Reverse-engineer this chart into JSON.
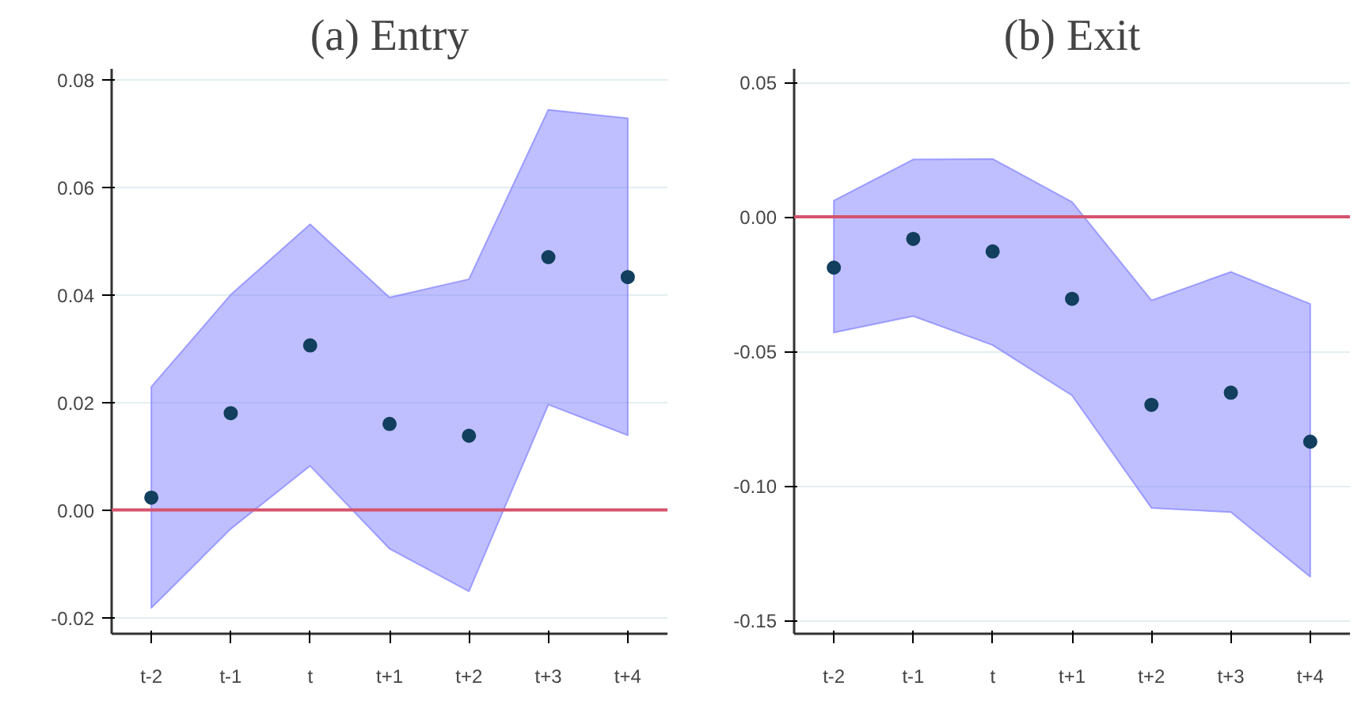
{
  "chart_data": [
    {
      "type": "scatter",
      "title": "(a) Entry",
      "categories": [
        "t-2",
        "t-1",
        "t",
        "t+1",
        "t+2",
        "t+3",
        "t+4"
      ],
      "ylim": [
        -0.023,
        0.082
      ],
      "yticks": [
        {
          "value": -0.02,
          "label": "-0.02"
        },
        {
          "value": 0,
          "label": "0.00"
        },
        {
          "value": 0.02,
          "label": "0.02"
        },
        {
          "value": 0.04,
          "label": "0.04"
        },
        {
          "value": 0.06,
          "label": "0.06"
        },
        {
          "value": 0.08,
          "label": "0.08"
        }
      ],
      "grid": "y",
      "marker": "circle",
      "series": [
        {
          "color": "#123f5e",
          "values": [
            0.0023,
            0.018,
            0.0306,
            0.016,
            0.0138,
            0.047,
            0.0433
          ],
          "lower": [
            -0.0182,
            -0.0035,
            0.0082,
            -0.0072,
            -0.0151,
            0.0196,
            0.0139
          ],
          "upper": [
            0.0229,
            0.04,
            0.0531,
            0.0395,
            0.0429,
            0.0744,
            0.0728
          ]
        }
      ],
      "ref_lines": [
        {
          "axis": "y",
          "value": 0,
          "color": "#d6536d"
        }
      ]
    },
    {
      "type": "scatter",
      "title": "(b) Exit",
      "categories": [
        "t-2",
        "t-1",
        "t",
        "t+1",
        "t+2",
        "t+3",
        "t+4"
      ],
      "ylim": [
        -0.155,
        0.055
      ],
      "yticks": [
        {
          "value": -0.15,
          "label": "-0.15"
        },
        {
          "value": -0.1,
          "label": "-0.10"
        },
        {
          "value": -0.05,
          "label": "-0.05"
        },
        {
          "value": 0,
          "label": "0.00"
        },
        {
          "value": 0.05,
          "label": "0.05"
        }
      ],
      "grid": "y",
      "marker": "circle",
      "series": [
        {
          "color": "#123f5e",
          "values": [
            -0.0189,
            -0.0082,
            -0.0129,
            -0.0305,
            -0.0699,
            -0.0654,
            -0.0836
          ],
          "lower": [
            -0.043,
            -0.0369,
            -0.0477,
            -0.0664,
            -0.1082,
            -0.1098,
            -0.1338
          ],
          "upper": [
            0.006,
            0.0213,
            0.0215,
            0.0055,
            -0.0311,
            -0.0205,
            -0.0324
          ]
        }
      ],
      "ref_lines": [
        {
          "axis": "y",
          "value": 0,
          "color": "#d6536d"
        }
      ]
    }
  ]
}
